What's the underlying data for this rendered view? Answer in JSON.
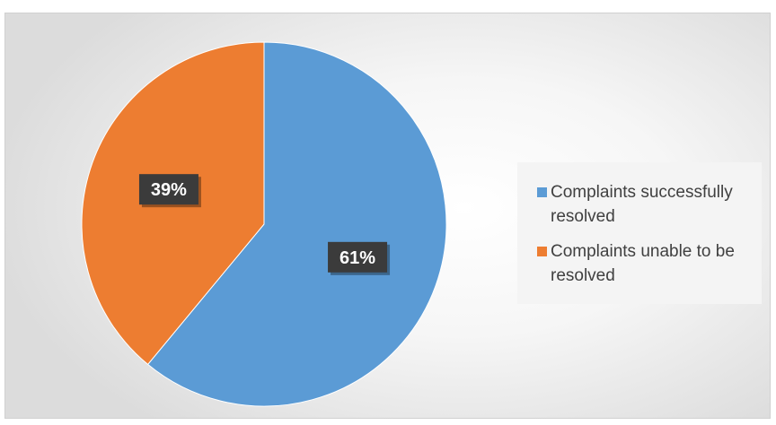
{
  "chart_data": {
    "type": "pie",
    "categories": [
      "Complaints successfully resolved",
      "Complaints unable to be resolved"
    ],
    "values": [
      61,
      39
    ],
    "data_labels": [
      "61%",
      "39%"
    ],
    "colors": [
      "#5b9bd5",
      "#ed7d31"
    ],
    "title": "",
    "legend_position": "right"
  }
}
